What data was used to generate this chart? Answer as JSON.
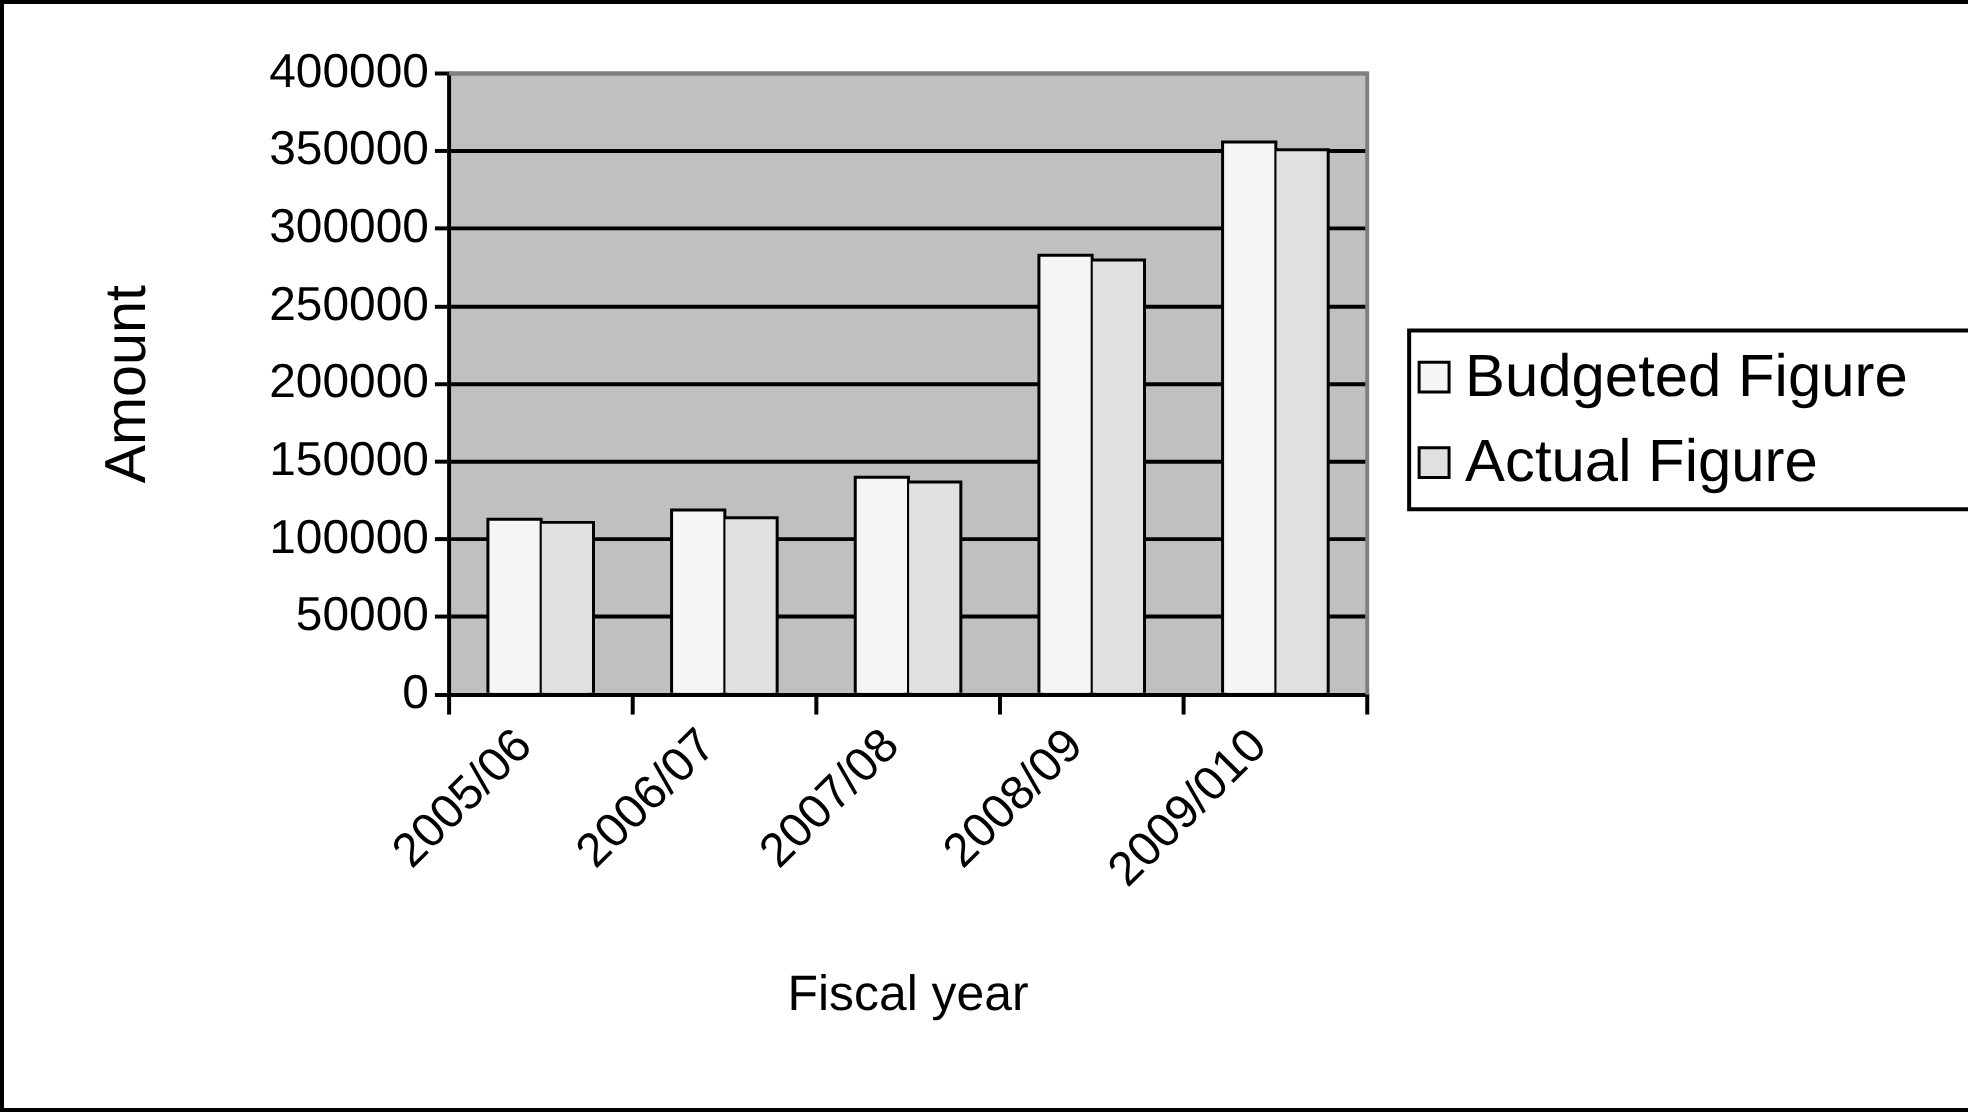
{
  "chart_data": {
    "type": "bar",
    "xlabel": "Fiscal year",
    "ylabel": "Amount",
    "categories": [
      "2005/06",
      "2006/07",
      "2007/08",
      "2008/09",
      "2009/010"
    ],
    "series": [
      {
        "name": "Budgeted Figure",
        "color": "#f5f5f5",
        "values": [
          112000,
          118000,
          139000,
          282000,
          355000
        ]
      },
      {
        "name": "Actual Figure",
        "color": "#e0e0e0",
        "values": [
          110000,
          113000,
          136000,
          279000,
          350000
        ]
      }
    ],
    "ylim": [
      0,
      400000
    ],
    "yticks": [
      0,
      50000,
      100000,
      150000,
      200000,
      250000,
      300000,
      350000,
      400000
    ],
    "grid": "y",
    "legend": "right"
  }
}
